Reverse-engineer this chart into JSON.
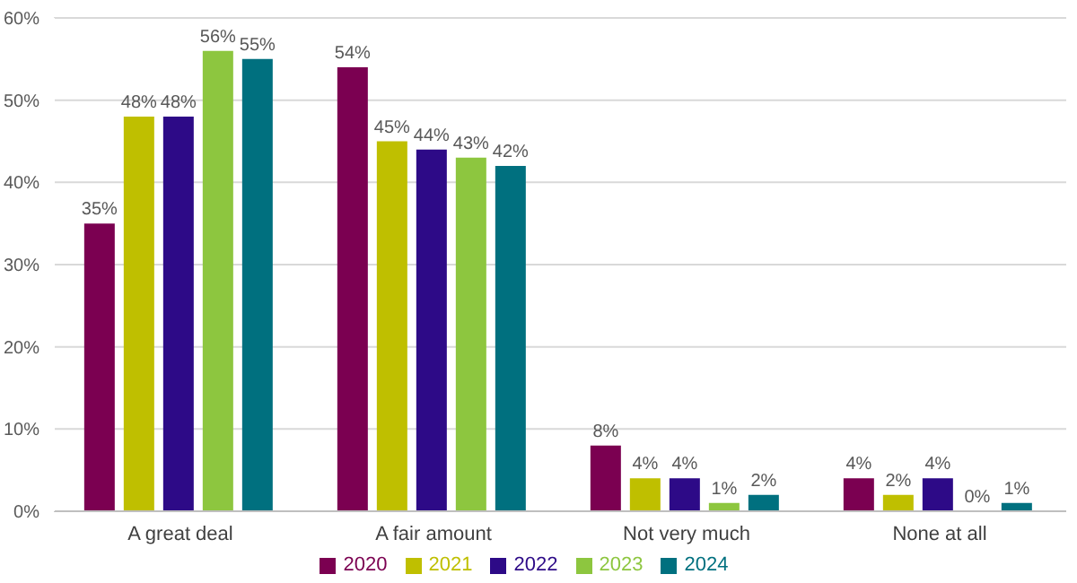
{
  "chart_data": {
    "type": "bar",
    "categories": [
      "A great deal",
      "A fair amount",
      "Not very much",
      "None at all"
    ],
    "series": [
      {
        "name": "2020",
        "color": "#7b0051",
        "values": [
          35,
          54,
          8,
          4
        ],
        "value_labels": [
          "35%",
          "54%",
          "8%",
          "4%"
        ]
      },
      {
        "name": "2021",
        "color": "#bfbf00",
        "values": [
          48,
          45,
          4,
          2
        ],
        "value_labels": [
          "48%",
          "45%",
          "4%",
          "2%"
        ]
      },
      {
        "name": "2022",
        "color": "#2d0a87",
        "values": [
          48,
          44,
          4,
          4
        ],
        "value_labels": [
          "48%",
          "44%",
          "4%",
          "4%"
        ]
      },
      {
        "name": "2023",
        "color": "#8dc63f",
        "values": [
          56,
          43,
          1,
          0
        ],
        "value_labels": [
          "56%",
          "43%",
          "1%",
          "0%"
        ]
      },
      {
        "name": "2024",
        "color": "#00707f",
        "values": [
          55,
          42,
          2,
          1
        ],
        "value_labels": [
          "55%",
          "42%",
          "2%",
          "1%"
        ]
      }
    ],
    "ylim": [
      0,
      60
    ],
    "yticks": [
      {
        "value": 0,
        "label": "0%"
      },
      {
        "value": 10,
        "label": "10%"
      },
      {
        "value": 20,
        "label": "20%"
      },
      {
        "value": 30,
        "label": "30%"
      },
      {
        "value": 40,
        "label": "40%"
      },
      {
        "value": 50,
        "label": "50%"
      },
      {
        "value": 60,
        "label": "60%"
      }
    ],
    "grid": "y",
    "legend": "bottom"
  }
}
